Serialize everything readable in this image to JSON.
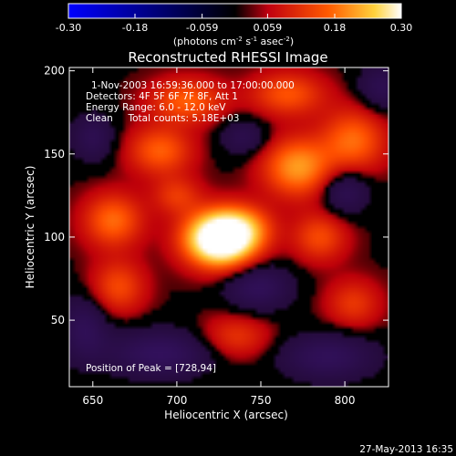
{
  "chart_data": {
    "type": "heatmap",
    "title": "Reconstructed RHESSI Image",
    "xlabel": "Heliocentric X (arcsec)",
    "ylabel": "Heliocentric Y (arcsec)",
    "xlim": [
      636,
      826
    ],
    "ylim": [
      10,
      202
    ],
    "xticks": [
      650,
      700,
      750,
      800
    ],
    "yticks": [
      50,
      100,
      150,
      200
    ],
    "colorbar": {
      "min": -0.3,
      "max": 0.3,
      "ticks": [
        "-0.30",
        "-0.18",
        "-0.059",
        "0.059",
        "0.18",
        "0.30"
      ],
      "unit_parts": [
        "(photons cm",
        "-2",
        " s",
        "-1",
        " asec",
        "-2",
        ")"
      ]
    },
    "annotations": [
      "1-Nov-2003 16:59:36.000 to 17:00:00.000",
      "Detectors: 4F 5F 6F 7F 8F, Att 1",
      "Energy Range: 6.0 - 12.0 keV",
      "Clean     Total counts: 5.18E+03"
    ],
    "peak_text": "Position of Peak = [728,94]",
    "peak": {
      "x": 728,
      "y": 94,
      "value": 0.3
    },
    "sources": [
      {
        "x": 726,
        "y": 99,
        "sx": 14,
        "sy": 11,
        "amp": 0.42
      },
      {
        "x": 740,
        "y": 106,
        "sx": 12,
        "sy": 9,
        "amp": 0.1
      },
      {
        "x": 772,
        "y": 142,
        "sx": 14,
        "sy": 12,
        "amp": 0.17
      },
      {
        "x": 805,
        "y": 158,
        "sx": 13,
        "sy": 13,
        "amp": 0.13
      },
      {
        "x": 662,
        "y": 110,
        "sx": 12,
        "sy": 11,
        "amp": 0.13
      },
      {
        "x": 690,
        "y": 152,
        "sx": 13,
        "sy": 10,
        "amp": 0.12
      },
      {
        "x": 706,
        "y": 182,
        "sx": 15,
        "sy": 9,
        "amp": 0.12
      },
      {
        "x": 766,
        "y": 186,
        "sx": 15,
        "sy": 9,
        "amp": 0.11
      },
      {
        "x": 665,
        "y": 70,
        "sx": 11,
        "sy": 11,
        "amp": 0.1
      },
      {
        "x": 785,
        "y": 100,
        "sx": 11,
        "sy": 10,
        "amp": 0.1
      },
      {
        "x": 805,
        "y": 60,
        "sx": 11,
        "sy": 10,
        "amp": 0.08
      },
      {
        "x": 735,
        "y": 40,
        "sx": 14,
        "sy": 9,
        "amp": 0.08
      },
      {
        "x": 700,
        "y": 125,
        "sx": 10,
        "sy": 8,
        "amp": 0.08
      },
      {
        "x": 650,
        "y": 160,
        "sx": 9,
        "sy": 10,
        "amp": -0.08
      },
      {
        "x": 748,
        "y": 70,
        "sx": 14,
        "sy": 10,
        "amp": -0.1
      },
      {
        "x": 800,
        "y": 128,
        "sx": 10,
        "sy": 10,
        "amp": -0.09
      },
      {
        "x": 690,
        "y": 30,
        "sx": 22,
        "sy": 10,
        "amp": -0.11
      },
      {
        "x": 790,
        "y": 28,
        "sx": 20,
        "sy": 10,
        "amp": -0.1
      },
      {
        "x": 645,
        "y": 45,
        "sx": 10,
        "sy": 14,
        "amp": -0.09
      },
      {
        "x": 740,
        "y": 160,
        "sx": 10,
        "sy": 8,
        "amp": -0.07
      },
      {
        "x": 822,
        "y": 190,
        "sx": 10,
        "sy": 10,
        "amp": -0.08
      }
    ],
    "background": 0.01
  },
  "footer_timestamp": "27-May-2013 16:35"
}
